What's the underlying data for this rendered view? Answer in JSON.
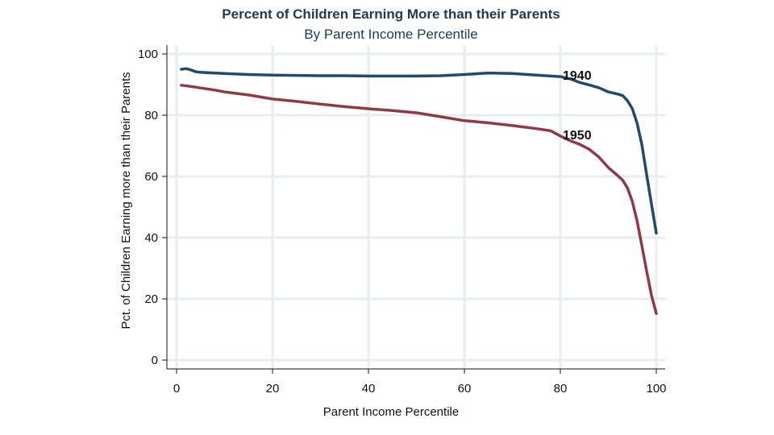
{
  "chart_data": {
    "type": "line",
    "title": "Percent of Children Earning More than their Parents",
    "subtitle": "By Parent Income Percentile",
    "xlabel": "Parent Income Percentile",
    "ylabel": "Pct. of Children Earning more than their Parents",
    "xlim": [
      0,
      100
    ],
    "ylim": [
      0,
      100
    ],
    "xticks": [
      0,
      20,
      40,
      60,
      80,
      100
    ],
    "yticks": [
      0,
      20,
      40,
      60,
      80,
      100
    ],
    "grid": true,
    "legend": "none",
    "series": [
      {
        "name": "1940",
        "color": "#214a6b",
        "x": [
          1,
          2,
          3,
          4,
          5,
          10,
          15,
          20,
          25,
          30,
          35,
          40,
          45,
          50,
          55,
          60,
          65,
          70,
          75,
          80,
          82,
          84,
          86,
          88,
          90,
          92,
          93,
          94,
          95,
          96,
          97,
          98,
          99,
          100
        ],
        "y": [
          95.0,
          95.2,
          94.8,
          94.2,
          94.0,
          93.6,
          93.3,
          93.1,
          93.0,
          92.9,
          92.9,
          92.8,
          92.8,
          92.8,
          92.9,
          93.3,
          93.8,
          93.6,
          93.1,
          92.6,
          91.9,
          90.7,
          89.9,
          89.0,
          87.6,
          86.9,
          86.4,
          84.7,
          82.1,
          77.4,
          70.4,
          60.5,
          51.0,
          41.5
        ]
      },
      {
        "name": "1950",
        "color": "#8f3a45",
        "x": [
          1,
          3,
          5,
          8,
          10,
          15,
          20,
          25,
          30,
          35,
          40,
          45,
          50,
          55,
          60,
          65,
          70,
          75,
          78,
          80,
          82,
          84,
          86,
          88,
          90,
          92,
          93,
          94,
          95,
          96,
          97,
          98,
          99,
          100
        ],
        "y": [
          89.8,
          89.4,
          88.9,
          88.2,
          87.6,
          86.6,
          85.3,
          84.5,
          83.6,
          82.8,
          82.1,
          81.5,
          80.8,
          79.5,
          78.2,
          77.5,
          76.6,
          75.6,
          74.9,
          73.2,
          71.7,
          70.5,
          68.9,
          66.4,
          62.9,
          60.2,
          58.7,
          56.2,
          51.8,
          45.4,
          37.4,
          29.0,
          21.2,
          15.2
        ]
      }
    ]
  }
}
